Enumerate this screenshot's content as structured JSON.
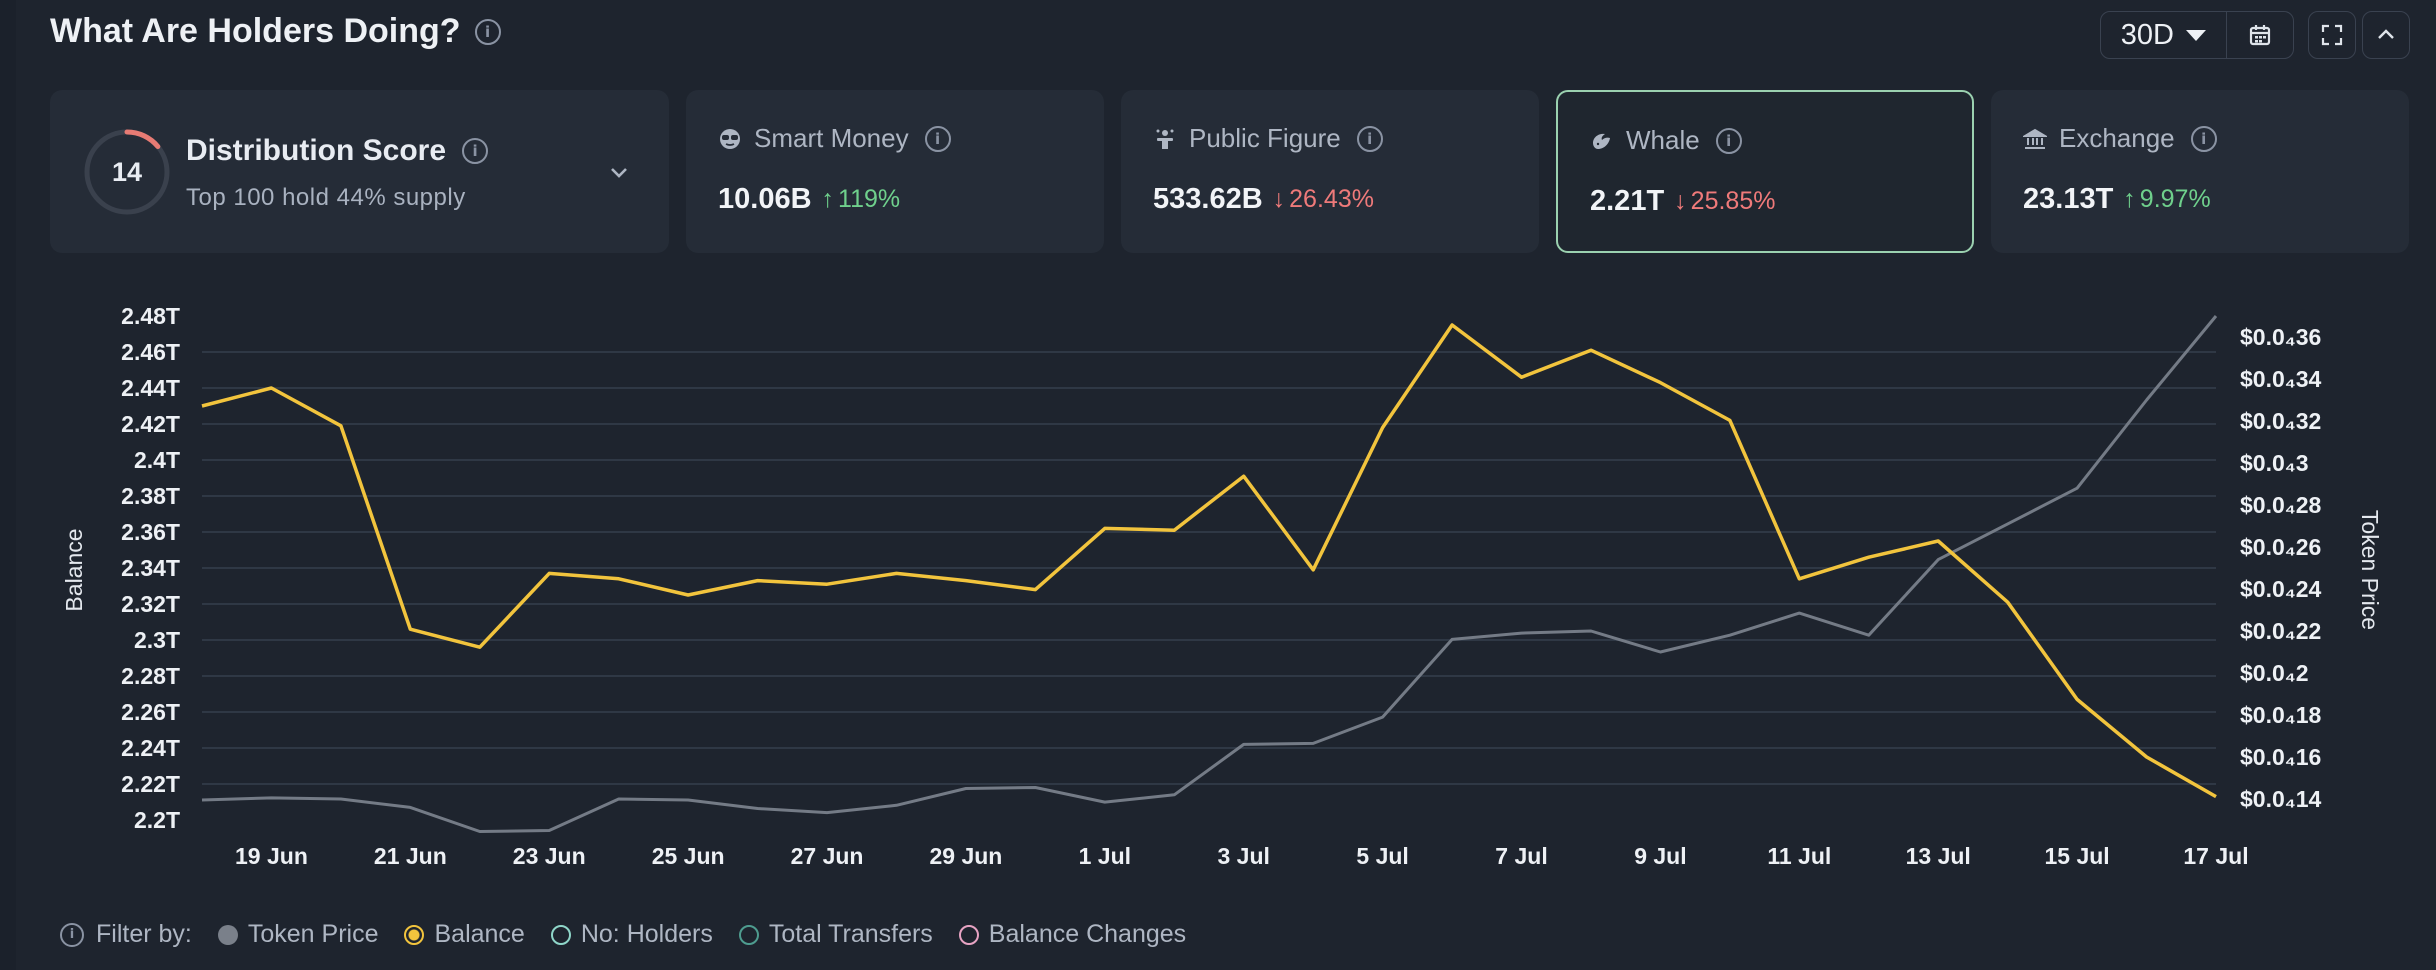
{
  "header": {
    "title": "What Are Holders Doing?",
    "period": "30D"
  },
  "distribution": {
    "score": "14",
    "score_fraction": 0.14,
    "title": "Distribution Score",
    "subtitle": "Top 100 hold 44% supply",
    "ring_color": "#e77b74"
  },
  "cards": [
    {
      "label": "Smart Money",
      "icon": "sunglasses-icon",
      "value": "10.06B",
      "change": "119%",
      "direction": "up"
    },
    {
      "label": "Public Figure",
      "icon": "podium-icon",
      "value": "533.62B",
      "change": "26.43%",
      "direction": "down"
    },
    {
      "label": "Whale",
      "icon": "whale-icon",
      "value": "2.21T",
      "change": "25.85%",
      "direction": "down",
      "selected": true
    },
    {
      "label": "Exchange",
      "icon": "bank-icon",
      "value": "23.13T",
      "change": "9.97%",
      "direction": "up"
    }
  ],
  "chart_data": {
    "type": "line",
    "x_tick_labels": [
      "19 Jun",
      "21 Jun",
      "23 Jun",
      "25 Jun",
      "27 Jun",
      "29 Jun",
      "1 Jul",
      "3 Jul",
      "5 Jul",
      "7 Jul",
      "9 Jul",
      "11 Jul",
      "13 Jul",
      "15 Jul",
      "17 Jul"
    ],
    "x": [
      "18 Jun",
      "19 Jun",
      "20 Jun",
      "21 Jun",
      "22 Jun",
      "23 Jun",
      "24 Jun",
      "25 Jun",
      "26 Jun",
      "27 Jun",
      "28 Jun",
      "29 Jun",
      "30 Jun",
      "1 Jul",
      "2 Jul",
      "3 Jul",
      "4 Jul",
      "5 Jul",
      "6 Jul",
      "7 Jul",
      "8 Jul",
      "9 Jul",
      "10 Jul",
      "11 Jul",
      "12 Jul",
      "13 Jul",
      "14 Jul",
      "15 Jul",
      "16 Jul",
      "17 Jul"
    ],
    "ylabel": "Balance",
    "y2label": "Token Price",
    "y_ticks": [
      "2.48T",
      "2.46T",
      "2.44T",
      "2.42T",
      "2.4T",
      "2.38T",
      "2.36T",
      "2.34T",
      "2.32T",
      "2.3T",
      "2.28T",
      "2.26T",
      "2.24T",
      "2.22T",
      "2.2T"
    ],
    "ylim": [
      2.2,
      2.48
    ],
    "y2_ticks": [
      "$0.0₄36",
      "$0.0₄34",
      "$0.0₄32",
      "$0.0₄3",
      "$0.0₄28",
      "$0.0₄26",
      "$0.0₄24",
      "$0.0₄22",
      "$0.0₄2",
      "$0.0₄18",
      "$0.0₄16",
      "$0.0₄14"
    ],
    "y2lim": [
      0.13,
      0.37
    ],
    "y2_unit": "token price in units of $0.0₄ (0.13 = $0.0₄13)",
    "grid": true,
    "series": [
      {
        "name": "Balance",
        "axis": "left",
        "color": "#f2c43d",
        "values": [
          2.43,
          2.44,
          2.419,
          2.306,
          2.296,
          2.337,
          2.334,
          2.325,
          2.333,
          2.331,
          2.337,
          2.333,
          2.328,
          2.362,
          2.361,
          2.391,
          2.339,
          2.418,
          2.475,
          2.446,
          2.461,
          2.443,
          2.422,
          2.334,
          2.346,
          2.355,
          2.321,
          2.267,
          2.235,
          2.213
        ]
      },
      {
        "name": "Token Price",
        "axis": "right",
        "color": "#747b86",
        "values": [
          0.1395,
          0.1405,
          0.14,
          0.136,
          0.1245,
          0.125,
          0.14,
          0.1395,
          0.1355,
          0.1335,
          0.137,
          0.145,
          0.1455,
          0.1385,
          0.142,
          0.166,
          0.1665,
          0.179,
          0.216,
          0.219,
          0.22,
          0.21,
          0.218,
          0.2285,
          0.218,
          0.254,
          0.271,
          0.288,
          0.33,
          0.37
        ]
      }
    ]
  },
  "filter": {
    "label": "Filter by:",
    "items": [
      {
        "label": "Token Price",
        "color": "#7a808a",
        "style": "filled"
      },
      {
        "label": "Balance",
        "color": "#f2c43d",
        "style": "selected"
      },
      {
        "label": "No: Holders",
        "color": "#8fd6c9",
        "style": "outline"
      },
      {
        "label": "Total Transfers",
        "color": "#4e9c8f",
        "style": "outline"
      },
      {
        "label": "Balance Changes",
        "color": "#e7a3c3",
        "style": "outline"
      }
    ]
  }
}
